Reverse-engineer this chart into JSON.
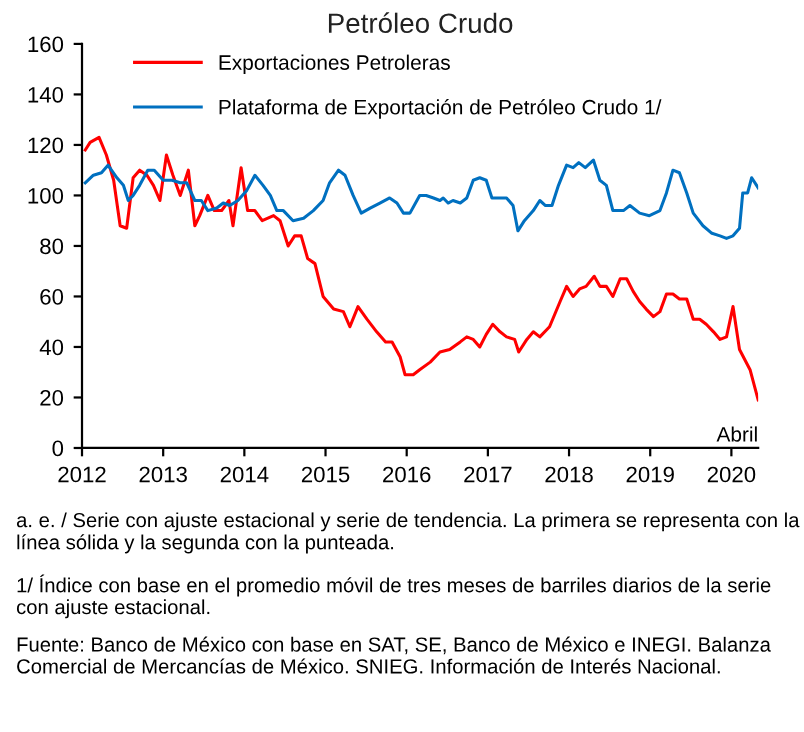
{
  "chart_data": {
    "type": "line",
    "title": "Petróleo Crudo",
    "xlim": [
      2012,
      2020.33
    ],
    "xticks": [
      2012,
      2013,
      2014,
      2015,
      2016,
      2017,
      2018,
      2019,
      2020
    ],
    "ylim": [
      0,
      160
    ],
    "yticks": [
      0,
      20,
      40,
      60,
      80,
      100,
      120,
      140,
      160
    ],
    "grid": false,
    "legend": "top left",
    "line_style": "solid",
    "marker": "none",
    "series": [
      {
        "name": "Exportaciones Petroleras",
        "color": "#ff0000",
        "x": [
          2012.04,
          2012.1,
          2012.21,
          2012.3,
          2012.39,
          2012.47,
          2012.55,
          2012.63,
          2012.71,
          2012.8,
          2012.88,
          2012.96,
          2013.04,
          2013.12,
          2013.21,
          2013.31,
          2013.39,
          2013.45,
          2013.55,
          2013.63,
          2013.72,
          2013.81,
          2013.86,
          2013.96,
          2014.04,
          2014.13,
          2014.22,
          2014.36,
          2014.44,
          2014.54,
          2014.62,
          2014.7,
          2014.78,
          2014.87,
          2014.97,
          2015.1,
          2015.22,
          2015.3,
          2015.4,
          2015.51,
          2015.63,
          2015.74,
          2015.82,
          2015.92,
          2015.98,
          2016.08,
          2016.16,
          2016.29,
          2016.41,
          2016.53,
          2016.66,
          2016.74,
          2016.82,
          2016.9,
          2016.98,
          2017.06,
          2017.15,
          2017.23,
          2017.33,
          2017.38,
          2017.48,
          2017.56,
          2017.64,
          2017.76,
          2017.89,
          2017.97,
          2018.05,
          2018.13,
          2018.21,
          2018.31,
          2018.38,
          2018.46,
          2018.54,
          2018.63,
          2018.71,
          2018.79,
          2018.87,
          2018.95,
          2019.04,
          2019.12,
          2019.2,
          2019.28,
          2019.36,
          2019.45,
          2019.53,
          2019.61,
          2019.69,
          2019.78,
          2019.86,
          2019.94,
          2020.02,
          2020.1,
          2020.23,
          2020.33
        ],
        "values": [
          118,
          121,
          123,
          116,
          106,
          88,
          87,
          107,
          110,
          108,
          104,
          98,
          116,
          108,
          100,
          110,
          88,
          92,
          100,
          94,
          94,
          98,
          88,
          111,
          94,
          94,
          90,
          92,
          90,
          80,
          84,
          84,
          75,
          73,
          60,
          55,
          54,
          48,
          56,
          51,
          46,
          42,
          42,
          36,
          29,
          29,
          31,
          34,
          38,
          39,
          42,
          44,
          43,
          40,
          45,
          49,
          46,
          44,
          43,
          38,
          43,
          46,
          44,
          48,
          58,
          64,
          60,
          63,
          64,
          68,
          64,
          64,
          60,
          67,
          67,
          62,
          58,
          55,
          52,
          54,
          61,
          61,
          59,
          59,
          51,
          51,
          49,
          46,
          43,
          44,
          56,
          39,
          31,
          19
        ]
      },
      {
        "name": "Plataforma de Exportación de Petróleo Crudo 1/",
        "color": "#0070c0",
        "x": [
          2012.04,
          2012.14,
          2012.24,
          2012.32,
          2012.43,
          2012.51,
          2012.57,
          2012.63,
          2012.71,
          2012.81,
          2012.89,
          2013.0,
          2013.11,
          2013.21,
          2013.29,
          2013.39,
          2013.47,
          2013.55,
          2013.66,
          2013.74,
          2013.82,
          2013.92,
          2014.03,
          2014.13,
          2014.23,
          2014.32,
          2014.4,
          2014.48,
          2014.6,
          2014.73,
          2014.85,
          2014.97,
          2015.05,
          2015.16,
          2015.24,
          2015.34,
          2015.44,
          2015.55,
          2015.67,
          2015.79,
          2015.88,
          2015.96,
          2016.04,
          2016.16,
          2016.24,
          2016.33,
          2016.41,
          2016.45,
          2016.51,
          2016.57,
          2016.66,
          2016.74,
          2016.82,
          2016.9,
          2016.98,
          2017.05,
          2017.13,
          2017.23,
          2017.31,
          2017.37,
          2017.45,
          2017.56,
          2017.64,
          2017.71,
          2017.79,
          2017.87,
          2017.97,
          2018.05,
          2018.12,
          2018.2,
          2018.3,
          2018.38,
          2018.46,
          2018.54,
          2018.67,
          2018.75,
          2018.87,
          2018.99,
          2019.12,
          2019.2,
          2019.28,
          2019.36,
          2019.45,
          2019.53,
          2019.65,
          2019.76,
          2019.86,
          2019.94,
          2020.02,
          2020.1,
          2020.14,
          2020.2,
          2020.25,
          2020.33
        ],
        "values": [
          105,
          108,
          109,
          112,
          107,
          104,
          98,
          100,
          104,
          110,
          110,
          106,
          106,
          105,
          105,
          98,
          98,
          94,
          95,
          97,
          96,
          98,
          102,
          108,
          104,
          100,
          94,
          94,
          90,
          91,
          94,
          98,
          105,
          110,
          108,
          100,
          93,
          95,
          97,
          99,
          97,
          93,
          93,
          100,
          100,
          99,
          98,
          99,
          97,
          98,
          97,
          99,
          106,
          107,
          106,
          99,
          99,
          99,
          96,
          86,
          90,
          94,
          98,
          96,
          96,
          104,
          112,
          111,
          113,
          111,
          114,
          106,
          104,
          94,
          94,
          96,
          93,
          92,
          94,
          101,
          110,
          109,
          101,
          93,
          88,
          85,
          84,
          83,
          84,
          87,
          101,
          101,
          107,
          103
        ]
      }
    ],
    "annotations": [
      {
        "text": "Abril",
        "x": 2020.33,
        "y": 19
      },
      "a. e. / Serie con ajuste estacional y serie de tendencia. La primera se representa con la línea sólida y la segunda con la punteada.",
      "1/ Índice con base en el promedio móvil de tres meses de barriles diarios de la serie con ajuste estacional.",
      "Fuente: Banco de México con base en SAT, SE, Banco de México e INEGI. Balanza Comercial de Mercancías de México. SNIEG. Información de Interés Nacional."
    ]
  }
}
